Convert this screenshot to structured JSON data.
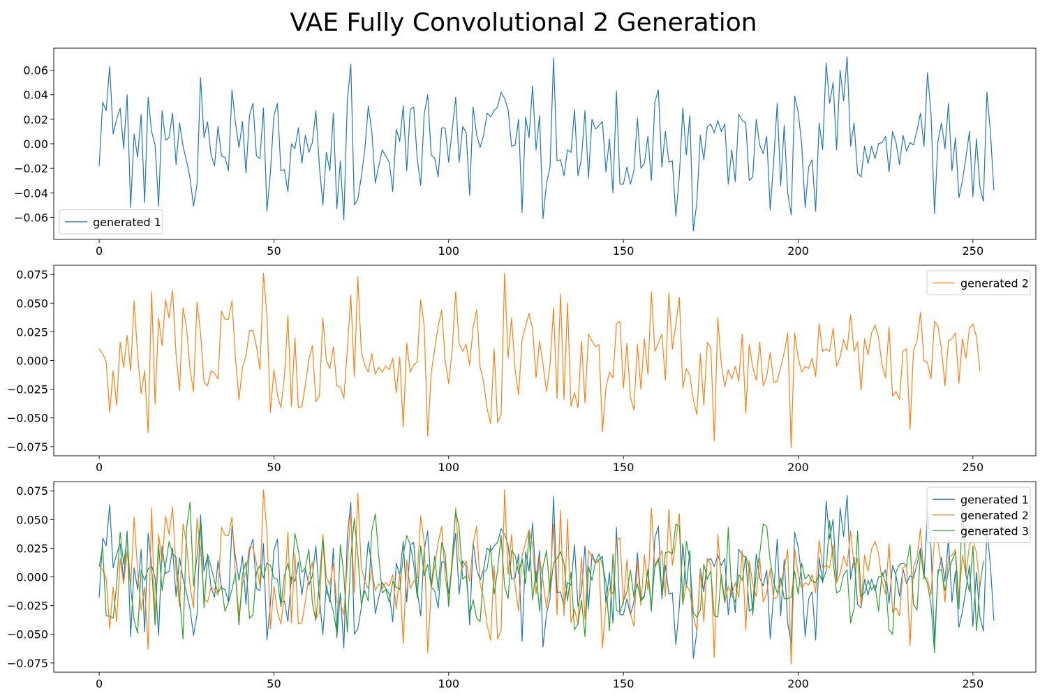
{
  "figure": {
    "title": "VAE Fully Convolutional 2 Generation"
  },
  "colors": {
    "generated 1": "#1f77b4",
    "generated 2": "#ff7f0e",
    "generated 3": "#2ca02c",
    "axes_frame": "#000000",
    "legend_frame": "#cccccc"
  },
  "chart_data": [
    {
      "type": "line",
      "x_start": 0,
      "x_step": 1,
      "xlim": [
        -13,
        268
      ],
      "ylim": [
        -0.078,
        0.078
      ],
      "xticks": [
        0,
        50,
        100,
        150,
        200,
        250
      ],
      "yticks": [
        -0.06,
        -0.04,
        -0.02,
        0.0,
        0.02,
        0.04,
        0.06
      ],
      "ytick_labels": [
        "−0.06",
        "−0.04",
        "−0.02",
        "0.00",
        "0.02",
        "0.04",
        "0.06"
      ],
      "legend": "lower-left",
      "grid": false,
      "series": [
        {
          "name": "generated 1",
          "values": [
            -0.018,
            0.034,
            0.027,
            0.063,
            0.008,
            0.02,
            0.029,
            -0.004,
            0.04,
            -0.052,
            0.008,
            -0.011,
            0.024,
            -0.048,
            0.038,
            0.01,
            -0.001,
            -0.051,
            0.027,
            0.003,
            0.005,
            0.025,
            -0.017,
            0.017,
            -0.002,
            -0.014,
            -0.028,
            -0.051,
            -0.033,
            0.054,
            0.005,
            0.018,
            -0.009,
            -0.018,
            0.014,
            -0.01,
            -0.011,
            -0.022,
            0.044,
            0.017,
            -0.003,
            0.018,
            -0.024,
            0.023,
            0.033,
            -0.01,
            -0.012,
            0.029,
            -0.055,
            -0.023,
            0.023,
            0.033,
            -0.022,
            -0.021,
            -0.039,
            -0.0,
            -0.004,
            0.013,
            -0.016,
            0.007,
            -0.007,
            0.001,
            0.027,
            -0.018,
            -0.05,
            -0.007,
            -0.022,
            0.025,
            -0.053,
            -0.014,
            -0.062,
            0.035,
            0.065,
            -0.05,
            -0.045,
            -0.027,
            -0.005,
            0.031,
            0.01,
            -0.032,
            -0.018,
            -0.005,
            -0.01,
            -0.015,
            -0.039,
            0.012,
            0.002,
            0.031,
            -0.022,
            0.028,
            0.03,
            -0.012,
            -0.034,
            0.024,
            0.04,
            -0.009,
            -0.012,
            -0.027,
            0.013,
            0.013,
            -0.015,
            0.011,
            0.038,
            -0.015,
            0.014,
            0.009,
            -0.042,
            0.03,
            0.007,
            -0.003,
            0.007,
            0.025,
            0.022,
            0.027,
            0.03,
            0.042,
            0.037,
            0.028,
            -0.002,
            -0.001,
            0.02,
            -0.056,
            0.022,
            0.005,
            0.047,
            -0.005,
            0.023,
            -0.061,
            -0.032,
            -0.019,
            0.07,
            -0.014,
            -0.013,
            -0.026,
            -0.005,
            -0.007,
            0.028,
            -0.026,
            -0.012,
            0.027,
            -0.028,
            0.02,
            0.012,
            0.015,
            0.018,
            -0.023,
            0.004,
            -0.04,
            0.043,
            -0.033,
            -0.033,
            -0.019,
            -0.033,
            -0.022,
            0.021,
            -0.02,
            -0.016,
            0.006,
            -0.03,
            0.034,
            0.044,
            -0.019,
            0.01,
            -0.015,
            -0.014,
            -0.059,
            -0.026,
            0.029,
            -0.009,
            0.023,
            -0.071,
            -0.048,
            0.007,
            -0.013,
            0.014,
            0.016,
            0.009,
            0.019,
            0.01,
            0.016,
            -0.033,
            -0.005,
            -0.031,
            0.024,
            0.019,
            0.017,
            -0.03,
            -0.027,
            0.02,
            -0.001,
            -0.008,
            0.006,
            -0.054,
            -0.014,
            0.033,
            -0.034,
            0.015,
            -0.04,
            -0.058,
            0.039,
            0.026,
            0.0,
            -0.052,
            -0.019,
            -0.013,
            -0.055,
            0.017,
            -0.005,
            0.066,
            0.033,
            0.05,
            -0.005,
            0.06,
            0.035,
            0.071,
            -0.002,
            0.017,
            -0.024,
            -0.027,
            -0.002,
            -0.016,
            -0.002,
            -0.012,
            0.0,
            0.001,
            0.006,
            -0.023,
            0.01,
            0.001,
            -0.017,
            0.007,
            -0.006,
            0.001,
            -0.001,
            0.011,
            0.025,
            -0.002,
            0.058,
            0.025,
            -0.057,
            0.002,
            0.017,
            -0.004,
            0.033,
            -0.022,
            0.005,
            -0.044,
            -0.03,
            -0.011,
            0.01,
            -0.043,
            0.004,
            -0.035,
            -0.047,
            0.042,
            0.01,
            -0.038
          ]
        }
      ]
    },
    {
      "type": "line",
      "x_start": 0,
      "x_step": 1,
      "xlim": [
        -13,
        268
      ],
      "ylim": [
        -0.083,
        0.083
      ],
      "xticks": [
        0,
        50,
        100,
        150,
        200,
        250
      ],
      "yticks": [
        -0.075,
        -0.05,
        -0.025,
        0.0,
        0.025,
        0.05,
        0.075
      ],
      "ytick_labels": [
        "−0.075",
        "−0.050",
        "−0.025",
        "0.000",
        "0.025",
        "0.050",
        "0.075"
      ],
      "legend": "upper-right",
      "grid": false,
      "series": [
        {
          "name": "generated 2",
          "values": [
            0.01,
            0.006,
            -0.001,
            -0.045,
            -0.009,
            -0.039,
            0.016,
            -0.006,
            0.022,
            -0.009,
            0.052,
            0.005,
            -0.029,
            -0.009,
            -0.063,
            0.06,
            -0.038,
            0.037,
            0.013,
            0.053,
            0.037,
            0.061,
            0.005,
            -0.026,
            0.046,
            0.029,
            -0.008,
            -0.027,
            0.051,
            0.024,
            -0.019,
            -0.022,
            -0.009,
            -0.011,
            -0.016,
            0.043,
            0.036,
            0.036,
            0.052,
            0.002,
            -0.034,
            -0.006,
            0.004,
            0.026,
            0.026,
            0.012,
            -0.008,
            0.076,
            0.039,
            -0.045,
            -0.008,
            -0.03,
            -0.041,
            -0.014,
            0.039,
            -0.04,
            0.02,
            -0.041,
            -0.04,
            -0.021,
            0.001,
            0.013,
            -0.036,
            -0.031,
            0.037,
            0.0,
            -0.007,
            0.012,
            -0.022,
            -0.023,
            -0.033,
            0.01,
            0.057,
            -0.014,
            0.073,
            0.008,
            -0.004,
            -0.01,
            0.006,
            -0.012,
            -0.006,
            -0.01,
            -0.005,
            -0.008,
            0.002,
            -0.028,
            0.003,
            -0.058,
            0.015,
            -0.01,
            -0.004,
            -0.001,
            0.053,
            0.03,
            -0.066,
            -0.011,
            0.01,
            0.03,
            0.044,
            0.0,
            -0.02,
            0.009,
            0.06,
            0.015,
            0.008,
            0.014,
            -0.004,
            0.029,
            0.044,
            -0.006,
            -0.019,
            -0.042,
            -0.055,
            0.01,
            -0.054,
            -0.047,
            0.076,
            0.002,
            0.037,
            -0.008,
            -0.03,
            0.018,
            0.03,
            0.041,
            0.028,
            -0.015,
            0.017,
            -0.004,
            -0.027,
            -0.004,
            0.046,
            -0.033,
            0.058,
            -0.034,
            0.05,
            -0.04,
            -0.028,
            -0.041,
            0.017,
            -0.037,
            0.023,
            0.017,
            0.012,
            0.014,
            -0.062,
            -0.024,
            -0.01,
            -0.015,
            0.032,
            0.034,
            -0.024,
            0.015,
            -0.032,
            -0.043,
            0.014,
            -0.025,
            0.019,
            -0.012,
            0.06,
            0.008,
            0.015,
            0.023,
            -0.017,
            0.059,
            0.01,
            0.032,
            0.055,
            -0.024,
            -0.007,
            -0.013,
            -0.034,
            -0.047,
            0.006,
            -0.039,
            0.016,
            0.011,
            -0.07,
            0.037,
            -0.003,
            -0.023,
            -0.008,
            -0.016,
            -0.005,
            -0.018,
            0.023,
            -0.046,
            0.014,
            -0.006,
            -0.017,
            0.016,
            -0.022,
            -0.014,
            0.007,
            -0.019,
            -0.018,
            -0.006,
            0.007,
            0.024,
            -0.076,
            0.024,
            0.002,
            -0.01,
            -0.005,
            -0.007,
            0.002,
            -0.014,
            0.032,
            0.008,
            0.01,
            0.008,
            0.028,
            -0.005,
            0.003,
            0.018,
            0.009,
            0.04,
            0.008,
            0.016,
            -0.026,
            0.019,
            0.005,
            0.024,
            0.031,
            0.02,
            -0.004,
            -0.015,
            0.029,
            -0.031,
            -0.027,
            -0.034,
            0.008,
            0.01,
            -0.06,
            0.009,
            0.017,
            0.042,
            0.0,
            -0.002,
            -0.016,
            0.034,
            0.03,
            0.01,
            -0.022,
            0.017,
            0.019,
            0.024,
            -0.02,
            0.019,
            0.002,
            0.028,
            0.032,
            0.021,
            -0.009
          ]
        }
      ]
    },
    {
      "type": "line",
      "x_start": 0,
      "x_step": 1,
      "xlim": [
        -13,
        268
      ],
      "ylim": [
        -0.083,
        0.083
      ],
      "xticks": [
        0,
        50,
        100,
        150,
        200,
        250
      ],
      "yticks": [
        -0.075,
        -0.05,
        -0.025,
        0.0,
        0.025,
        0.05,
        0.075
      ],
      "ytick_labels": [
        "−0.075",
        "−0.050",
        "−0.025",
        "0.000",
        "0.025",
        "0.050",
        "0.075"
      ],
      "legend": "upper-right",
      "grid": false,
      "series": [
        {
          "name": "generated 1",
          "use_series_of": "0.0"
        },
        {
          "name": "generated 2",
          "use_series_of": "1.0"
        },
        {
          "name": "generated 3",
          "values": [
            0.009,
            0.026,
            -0.034,
            -0.034,
            -0.036,
            -0.007,
            0.039,
            0.011,
            0.035,
            -0.009,
            -0.038,
            -0.049,
            0.006,
            -0.003,
            0.007,
            0.009,
            -0.042,
            0.028,
            -0.012,
            0.01,
            0.031,
            0.02,
            0.017,
            -0.017,
            -0.054,
            0.042,
            0.065,
            -0.008,
            0.018,
            0.048,
            -0.027,
            0.02,
            0.009,
            -0.004,
            -0.014,
            -0.008,
            -0.03,
            -0.022,
            -0.011,
            0.003,
            -0.042,
            0.002,
            0.013,
            -0.036,
            -0.033,
            0.004,
            0.01,
            -0.001,
            0.012,
            0.01,
            -0.001,
            -0.002,
            -0.026,
            0.001,
            0.012,
            -0.006,
            0.038,
            0.023,
            0.004,
            0.008,
            0.024,
            -0.023,
            -0.038,
            -0.005,
            0.034,
            -0.013,
            -0.019,
            -0.03,
            -0.049,
            0.028,
            0.002,
            -0.048,
            0.017,
            0.051,
            0.019,
            -0.024,
            -0.012,
            -0.021,
            0.04,
            0.055,
            0.018,
            -0.014,
            -0.011,
            -0.022,
            -0.004,
            -0.009,
            -0.011,
            0.019,
            0.036,
            0.028,
            0.011,
            -0.018,
            0.027,
            0.001,
            0.011,
            -0.008,
            0.018,
            -0.012,
            0.03,
            0.02,
            -0.026,
            0.017,
            0.057,
            0.043,
            -0.002,
            0.001,
            -0.034,
            -0.02,
            -0.036,
            -0.039,
            0.004,
            0.007,
            0.027,
            -0.015,
            0.006,
            0.036,
            -0.008,
            -0.019,
            0.023,
            0.019,
            0.003,
            0.016,
            -0.006,
            0.039,
            -0.02,
            0.005,
            -0.03,
            0.009,
            0.023,
            -0.014,
            0.012,
            0.016,
            0.022,
            0.012,
            -0.021,
            0.004,
            -0.046,
            -0.041,
            -0.02,
            -0.052,
            0.009,
            -0.003,
            0.013,
            0.02,
            0.011,
            -0.005,
            -0.047,
            0.02,
            -0.029,
            -0.031,
            -0.021,
            -0.013,
            0.006,
            -0.018,
            -0.006,
            -0.021,
            -0.017,
            0.007,
            -0.027,
            0.01,
            0.016,
            -0.013,
            0.021,
            0.022,
            0.02,
            0.046,
            0.044,
            -0.024,
            0.031,
            0.015,
            -0.031,
            -0.035,
            -0.029,
            0.011,
            -0.002,
            0.005,
            -0.034,
            -0.035,
            0.002,
            -0.022,
            0.043,
            -0.016,
            -0.022,
            0.002,
            -0.003,
            0.018,
            0.008,
            -0.033,
            0.004,
            0.02,
            0.046,
            0.044,
            0.014,
            -0.005,
            -0.014,
            -0.001,
            -0.019,
            -0.019,
            -0.018,
            0.005,
            -0.015,
            0.012,
            -0.002,
            0.002,
            -0.004,
            -0.005,
            0.002,
            -0.004,
            0.005,
            0.049,
            0.014,
            -0.014,
            -0.012,
            0.002,
            0.006,
            -0.04,
            -0.027,
            0.04,
            -0.017,
            -0.014,
            -0.003,
            -0.011,
            -0.007,
            -0.03,
            0.004,
            -0.005,
            -0.046,
            -0.05,
            0.004,
            0.011,
            0.012,
            0.01,
            0.028,
            -0.024,
            -0.029,
            0.022,
            0.002,
            -0.006,
            -0.024,
            -0.066,
            0.006,
            0.006,
            -0.012,
            0.005,
            0.014,
            0.022,
            -0.028,
            0.068,
            0.002,
            -0.013,
            0.027,
            -0.047,
            -0.008,
            0.014
          ]
        }
      ]
    }
  ]
}
